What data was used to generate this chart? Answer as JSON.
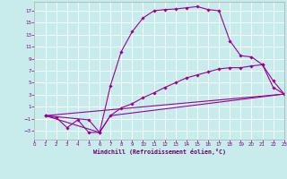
{
  "background_color": "#c8ecec",
  "line_color": "#990099",
  "grid_color": "#ffffff",
  "xlim": [
    0,
    23
  ],
  "ylim": [
    -4.5,
    18.5
  ],
  "xticks": [
    0,
    1,
    2,
    3,
    4,
    5,
    6,
    7,
    8,
    9,
    10,
    11,
    12,
    13,
    14,
    15,
    16,
    17,
    18,
    19,
    20,
    21,
    22,
    23
  ],
  "yticks": [
    -3,
    -1,
    1,
    3,
    5,
    7,
    9,
    11,
    13,
    15,
    17
  ],
  "xlabel": "Windchill (Refroidissement éolien,°C)",
  "line1_x": [
    1,
    2,
    3,
    4,
    5,
    6,
    7,
    8,
    9,
    10,
    11,
    12,
    13,
    14,
    15,
    16,
    17,
    18,
    19,
    20,
    21,
    22,
    23
  ],
  "line1_y": [
    -0.5,
    -0.8,
    -2.5,
    -1.2,
    -3.3,
    -3.3,
    4.5,
    10.2,
    13.5,
    15.8,
    17.0,
    17.2,
    17.3,
    17.5,
    17.7,
    17.2,
    17.0,
    12.0,
    9.5,
    9.3,
    8.0,
    4.2,
    3.1
  ],
  "line2_x": [
    1,
    5,
    6,
    7,
    8,
    9,
    10,
    11,
    12,
    13,
    14,
    15,
    16,
    17,
    18,
    19,
    20,
    21,
    22,
    23
  ],
  "line2_y": [
    -0.5,
    -1.2,
    -3.3,
    -0.5,
    0.8,
    1.5,
    2.5,
    3.3,
    4.2,
    5.0,
    5.8,
    6.3,
    6.8,
    7.3,
    7.5,
    7.5,
    7.8,
    8.0,
    5.3,
    3.1
  ],
  "line3_x": [
    1,
    23
  ],
  "line3_y": [
    -0.5,
    3.1
  ],
  "line4_x": [
    1,
    6,
    7,
    23
  ],
  "line4_y": [
    -0.5,
    -3.3,
    -0.5,
    3.1
  ]
}
